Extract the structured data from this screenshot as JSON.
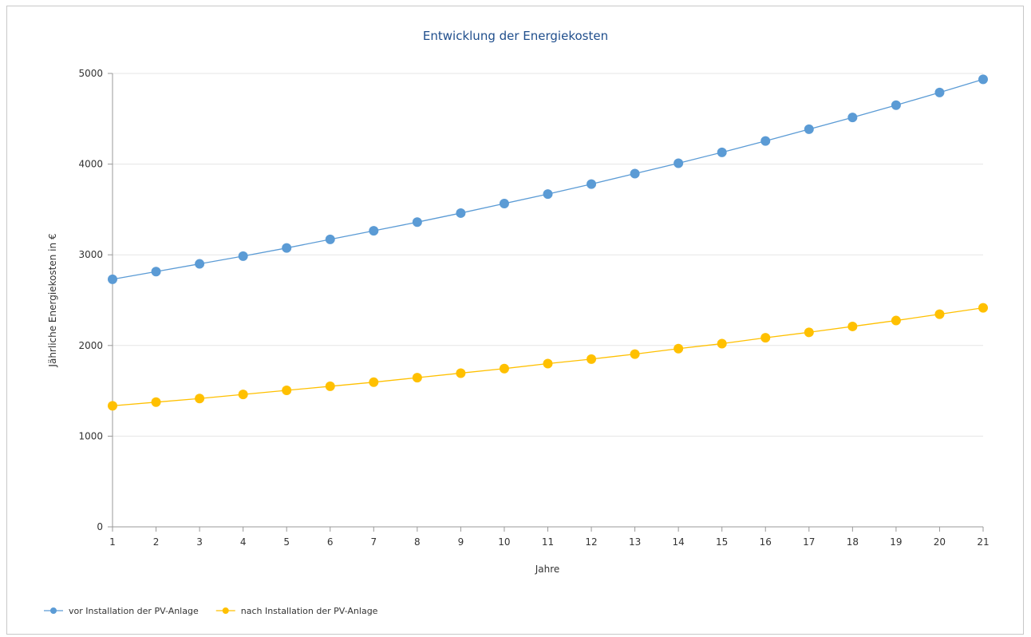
{
  "chart_data": {
    "type": "line",
    "title": "Entwicklung der Energiekosten",
    "xlabel": "Jahre",
    "ylabel": "Jährliche Energiekosten in €",
    "x": [
      1,
      2,
      3,
      4,
      5,
      6,
      7,
      8,
      9,
      10,
      11,
      12,
      13,
      14,
      15,
      16,
      17,
      18,
      19,
      20,
      21
    ],
    "ylim": [
      0,
      5000
    ],
    "yticks": [
      0,
      1000,
      2000,
      3000,
      4000,
      5000
    ],
    "grid": "horizontal",
    "legend_position": "bottom-left",
    "series": [
      {
        "name": "vor Installation der PV-Anlage",
        "color": "#5b9bd5",
        "values": [
          2730,
          2815,
          2900,
          2985,
          3075,
          3170,
          3265,
          3360,
          3460,
          3565,
          3670,
          3780,
          3895,
          4010,
          4130,
          4255,
          4385,
          4515,
          4650,
          4790,
          4935
        ]
      },
      {
        "name": "nach Installation der PV-Anlage",
        "color": "#ffc000",
        "values": [
          1335,
          1375,
          1415,
          1460,
          1505,
          1550,
          1595,
          1645,
          1695,
          1745,
          1800,
          1850,
          1905,
          1965,
          2020,
          2085,
          2145,
          2210,
          2275,
          2345,
          2415
        ]
      }
    ]
  }
}
